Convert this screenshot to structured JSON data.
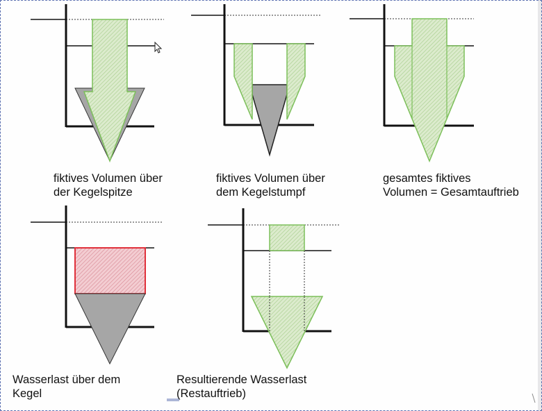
{
  "captions": {
    "p1": {
      "line1": "fiktives Volumen über",
      "line2": "der Kegelspitze"
    },
    "p2": {
      "line1": "fiktives Volumen über",
      "line2": "dem Kegelstumpf"
    },
    "p3": {
      "line1": "gesamtes fiktives",
      "line2": "Volumen = Gesamtauftrieb"
    },
    "p4": {
      "line1": "Wasserlast über dem",
      "line2": "Kegel"
    },
    "p5": {
      "line1": "Resultierende Wasserlast",
      "line2": "(Restauftrieb)"
    }
  },
  "colors": {
    "green_fill": "#dcebcd",
    "green_stroke": "#7cbf5a",
    "red_fill": "#f3cdd2",
    "red_stroke": "#e0303a",
    "gray_fill": "#a6a6a6",
    "axis": "#111111",
    "frame": "#5a6fb0"
  },
  "icons": {
    "cursor": "mouse-pointer-icon"
  }
}
